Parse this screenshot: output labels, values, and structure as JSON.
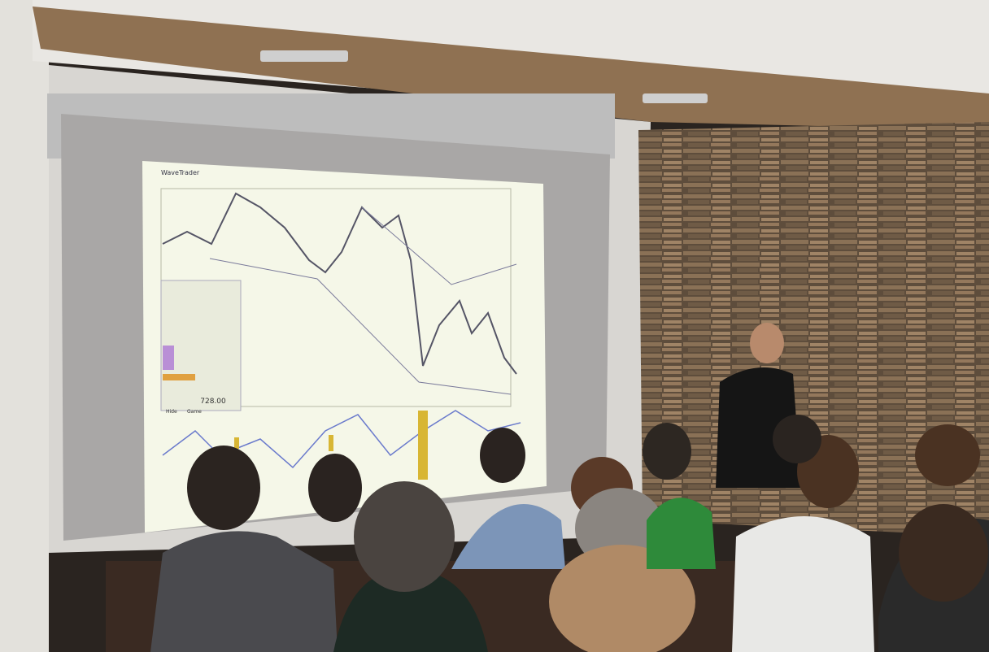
{
  "screen": {
    "app_title": "WaveTrader",
    "table_value": "728.00",
    "buttons": [
      "Hide",
      "Game"
    ]
  }
}
